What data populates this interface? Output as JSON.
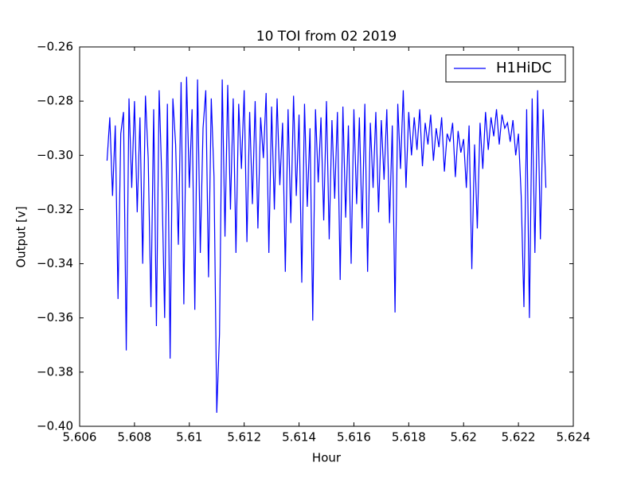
{
  "chart_data": {
    "type": "line",
    "title": "10 TOI from 02 2019",
    "x_label": "Hour",
    "y_label": "Output [v]",
    "x": [
      5.607,
      5.6071,
      5.6072,
      5.6073,
      5.6074,
      5.6075,
      5.6076,
      5.6077,
      5.6078,
      5.6079,
      5.608,
      5.6081,
      5.6082,
      5.6083,
      5.6084,
      5.6085,
      5.6086,
      5.6087,
      5.6088,
      5.6089,
      5.609,
      5.6091,
      5.6092,
      5.6093,
      5.6094,
      5.6095,
      5.6096,
      5.6097,
      5.6098,
      5.6099,
      5.61,
      5.6101,
      5.6102,
      5.6103,
      5.6104,
      5.6105,
      5.6106,
      5.6107,
      5.6108,
      5.6109,
      5.611,
      5.6111,
      5.6112,
      5.6113,
      5.6114,
      5.6115,
      5.6116,
      5.6117,
      5.6118,
      5.6119,
      5.612,
      5.6121,
      5.6122,
      5.6123,
      5.6124,
      5.6125,
      5.6126,
      5.6127,
      5.6128,
      5.6129,
      5.613,
      5.6131,
      5.6132,
      5.6133,
      5.6134,
      5.6135,
      5.6136,
      5.6137,
      5.6138,
      5.6139,
      5.614,
      5.6141,
      5.6142,
      5.6143,
      5.6144,
      5.6145,
      5.6146,
      5.6147,
      5.6148,
      5.6149,
      5.615,
      5.6151,
      5.6152,
      5.6153,
      5.6154,
      5.6155,
      5.6156,
      5.6157,
      5.6158,
      5.6159,
      5.616,
      5.6161,
      5.6162,
      5.6163,
      5.6164,
      5.6165,
      5.6166,
      5.6167,
      5.6168,
      5.6169,
      5.617,
      5.6171,
      5.6172,
      5.6173,
      5.6174,
      5.6175,
      5.6176,
      5.6177,
      5.6178,
      5.6179,
      5.618,
      5.6181,
      5.6182,
      5.6183,
      5.6184,
      5.6185,
      5.6186,
      5.6187,
      5.6188,
      5.6189,
      5.619,
      5.6191,
      5.6192,
      5.6193,
      5.6194,
      5.6195,
      5.6196,
      5.6197,
      5.6198,
      5.6199,
      5.62,
      5.6201,
      5.6202,
      5.6203,
      5.6204,
      5.6205,
      5.6206,
      5.6207,
      5.6208,
      5.6209,
      5.621,
      5.6211,
      5.6212,
      5.6213,
      5.6214,
      5.6215,
      5.6216,
      5.6217,
      5.6218,
      5.6219,
      5.622,
      5.6221,
      5.6222,
      5.6223,
      5.6224,
      5.6225,
      5.6226,
      5.6227,
      5.6228,
      5.6229,
      5.623
    ],
    "series": [
      {
        "name": "H1HiDC",
        "color": "#0000ff",
        "values": [
          -0.302,
          -0.286,
          -0.315,
          -0.289,
          -0.353,
          -0.292,
          -0.284,
          -0.372,
          -0.279,
          -0.312,
          -0.28,
          -0.321,
          -0.286,
          -0.34,
          -0.278,
          -0.301,
          -0.356,
          -0.283,
          -0.363,
          -0.276,
          -0.31,
          -0.36,
          -0.281,
          -0.375,
          -0.279,
          -0.296,
          -0.333,
          -0.273,
          -0.355,
          -0.271,
          -0.312,
          -0.283,
          -0.357,
          -0.272,
          -0.336,
          -0.29,
          -0.276,
          -0.345,
          -0.279,
          -0.308,
          -0.395,
          -0.366,
          -0.272,
          -0.33,
          -0.274,
          -0.32,
          -0.279,
          -0.336,
          -0.281,
          -0.305,
          -0.276,
          -0.332,
          -0.284,
          -0.318,
          -0.28,
          -0.327,
          -0.286,
          -0.301,
          -0.277,
          -0.336,
          -0.282,
          -0.32,
          -0.279,
          -0.311,
          -0.288,
          -0.343,
          -0.283,
          -0.325,
          -0.278,
          -0.315,
          -0.285,
          -0.347,
          -0.281,
          -0.319,
          -0.29,
          -0.361,
          -0.283,
          -0.31,
          -0.286,
          -0.324,
          -0.28,
          -0.331,
          -0.287,
          -0.316,
          -0.284,
          -0.346,
          -0.282,
          -0.323,
          -0.289,
          -0.34,
          -0.283,
          -0.318,
          -0.286,
          -0.327,
          -0.281,
          -0.343,
          -0.288,
          -0.312,
          -0.284,
          -0.321,
          -0.287,
          -0.309,
          -0.283,
          -0.325,
          -0.289,
          -0.358,
          -0.281,
          -0.305,
          -0.276,
          -0.312,
          -0.284,
          -0.3,
          -0.286,
          -0.298,
          -0.283,
          -0.304,
          -0.288,
          -0.296,
          -0.285,
          -0.302,
          -0.29,
          -0.297,
          -0.286,
          -0.306,
          -0.292,
          -0.295,
          -0.288,
          -0.308,
          -0.291,
          -0.299,
          -0.294,
          -0.312,
          -0.289,
          -0.342,
          -0.296,
          -0.327,
          -0.288,
          -0.305,
          -0.284,
          -0.298,
          -0.286,
          -0.293,
          -0.283,
          -0.296,
          -0.285,
          -0.29,
          -0.288,
          -0.295,
          -0.287,
          -0.3,
          -0.292,
          -0.315,
          -0.356,
          -0.283,
          -0.36,
          -0.279,
          -0.336,
          -0.276,
          -0.331,
          -0.283,
          -0.312
        ]
      }
    ],
    "xlim": [
      5.606,
      5.624
    ],
    "xticks": [
      5.606,
      5.608,
      5.61,
      5.612,
      5.614,
      5.616,
      5.618,
      5.62,
      5.622,
      5.624
    ],
    "ylim": [
      -0.4,
      -0.26
    ],
    "yticks": [
      {
        "value": -0.4,
        "label": "−0.40"
      },
      {
        "value": -0.38,
        "label": "−0.38"
      },
      {
        "value": -0.36,
        "label": "−0.36"
      },
      {
        "value": -0.34,
        "label": "−0.34"
      },
      {
        "value": -0.32,
        "label": "−0.32"
      },
      {
        "value": -0.3,
        "label": "−0.30"
      },
      {
        "value": -0.28,
        "label": "−0.28"
      },
      {
        "value": -0.26,
        "label": "−0.26"
      }
    ],
    "legend": "upper right"
  }
}
